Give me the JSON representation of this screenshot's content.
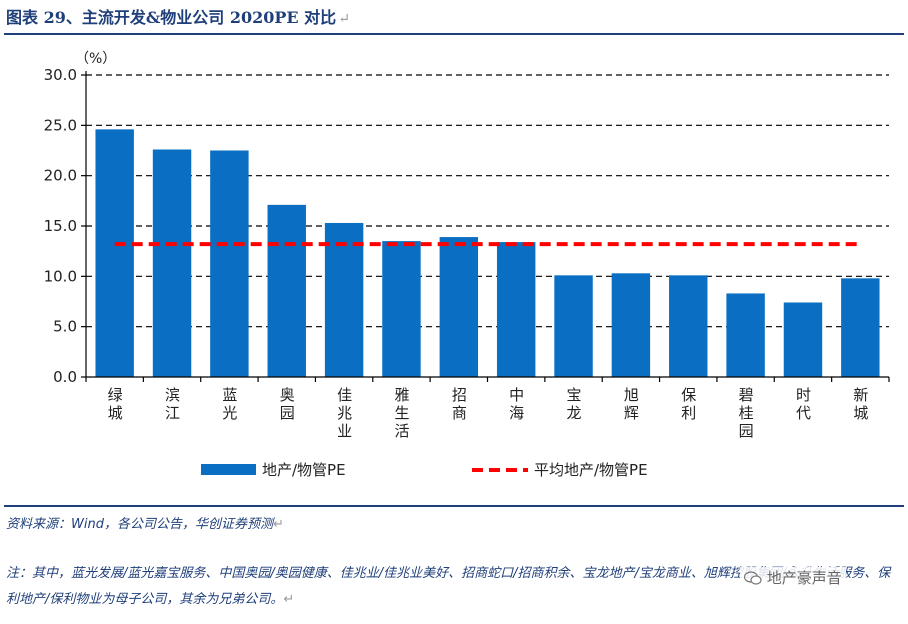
{
  "header": {
    "title": "图表 29、主流开发&物业公司 2020PE 对比",
    "return_mark": "↵"
  },
  "chart_data": {
    "type": "bar",
    "unit_label": "（%）",
    "categories": [
      "绿城",
      "滨江",
      "蓝光",
      "奥园",
      "佳兆业",
      "雅生活",
      "招商",
      "中海",
      "宝龙",
      "旭辉",
      "保利",
      "碧桂园",
      "时代",
      "新城"
    ],
    "series": [
      {
        "name": "地产/物管PE",
        "type": "bar",
        "color": "#0a6fc2",
        "values": [
          24.6,
          22.6,
          22.5,
          17.1,
          15.3,
          13.5,
          13.9,
          13.4,
          10.1,
          10.3,
          10.1,
          8.3,
          7.4,
          9.8
        ]
      },
      {
        "name": "平均地产/物管PE",
        "type": "line",
        "style": "dashed",
        "color": "#ff0000",
        "value": 13.2
      }
    ],
    "yticks": [
      "0.0",
      "5.0",
      "10.0",
      "15.0",
      "20.0",
      "25.0",
      "30.0"
    ],
    "ylim": [
      0,
      30
    ],
    "grid": "dashed-horizontal",
    "legend": "bottom",
    "title": "",
    "xlabel": "",
    "ylabel": ""
  },
  "footer": {
    "source": "资料来源：Wind，各公司公告，华创证券预测",
    "note": "注：其中，蓝光发展/蓝光嘉宝服务、中国奥园/奥园健康、佳兆业/佳兆业美好、招商蛇口/招商积余、宝龙地产/宝龙商业、旭辉控股集团/永升生活服务、保利地产/保利物业为母子公司，其余为兄弟公司。",
    "watermark": "地产豪声音"
  }
}
